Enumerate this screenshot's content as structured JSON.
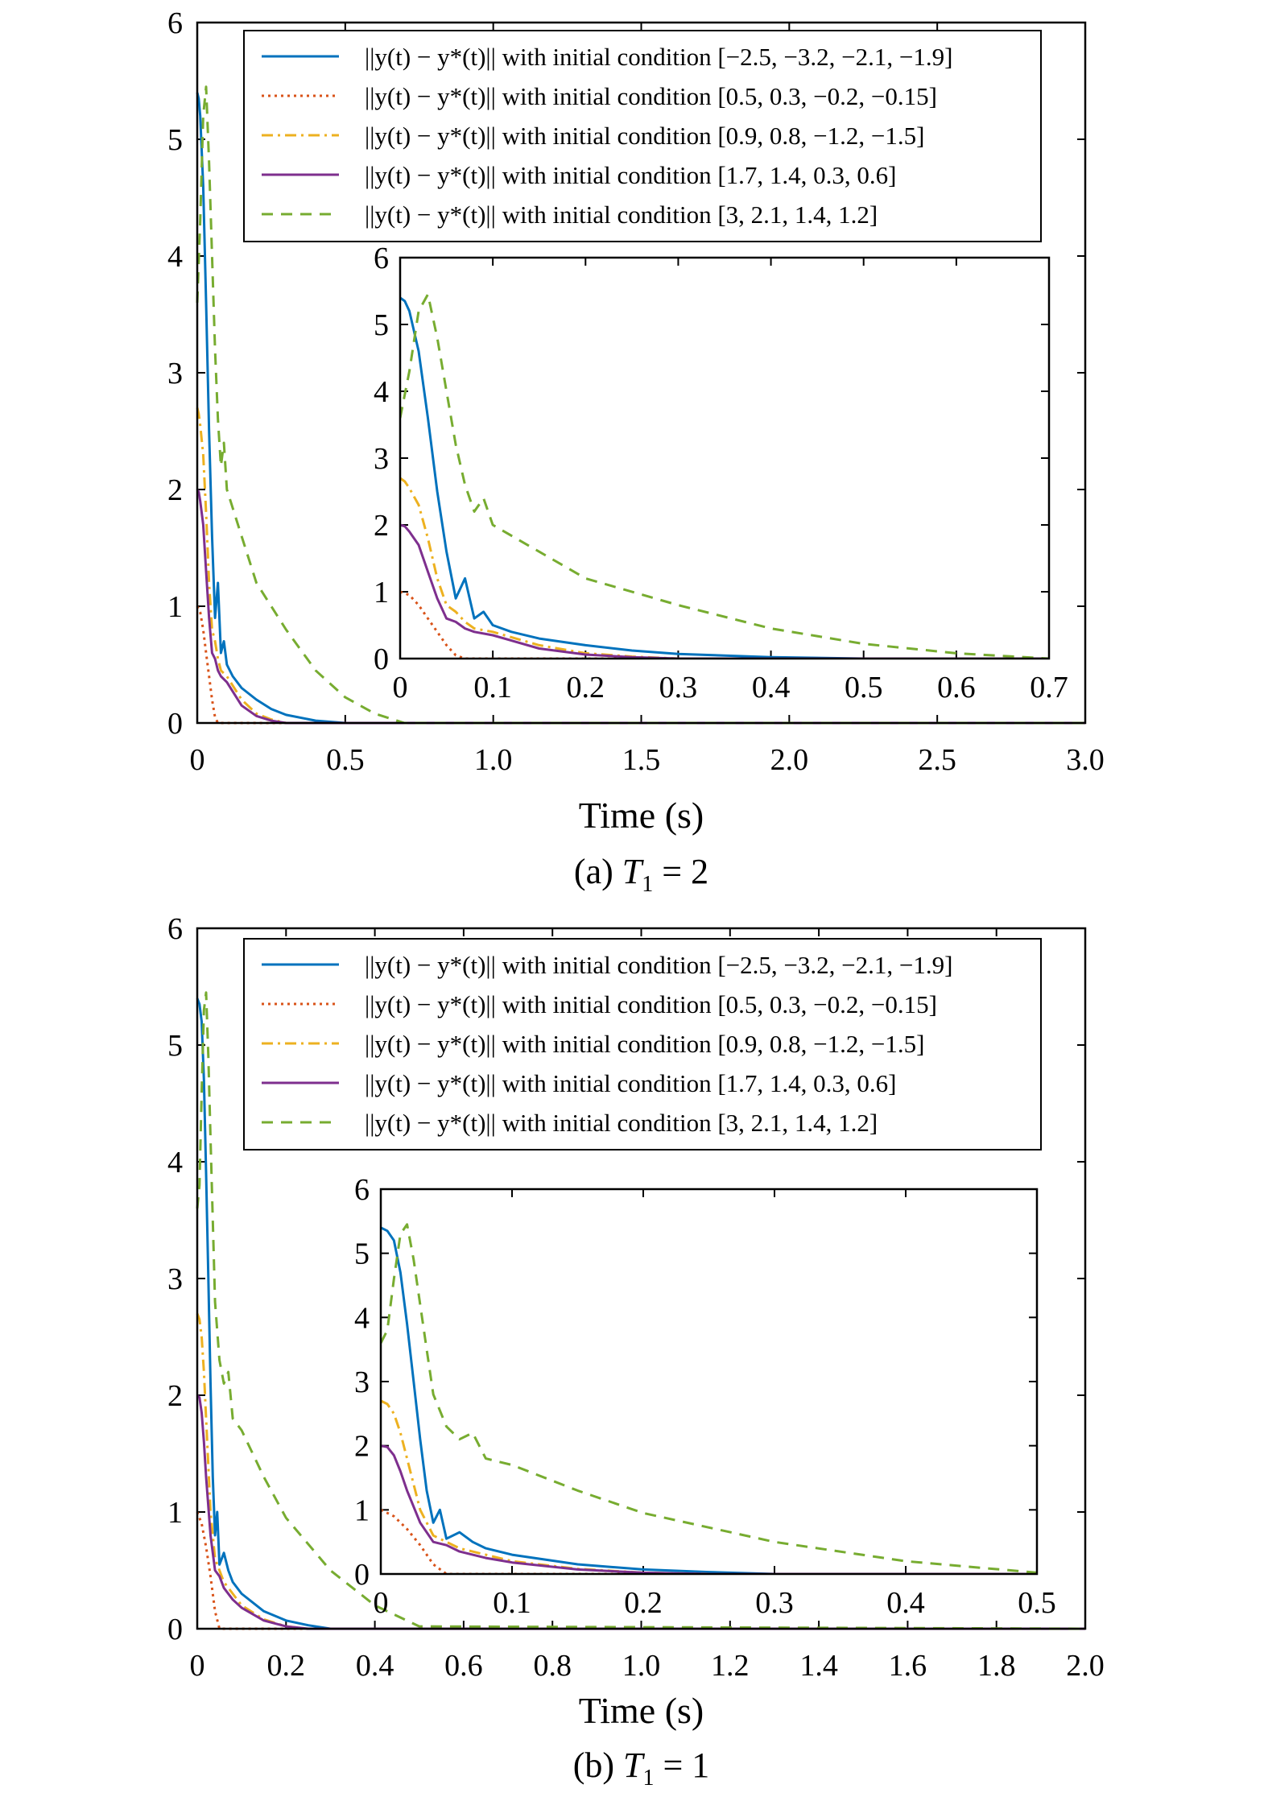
{
  "colors": {
    "s1": "#0072BD",
    "s2": "#D95319",
    "s3": "#EDB120",
    "s4": "#7E2F8E",
    "s5": "#77AC30"
  },
  "chart_data": [
    {
      "type": "line",
      "caption": "(a) T1 = 2",
      "caption_prefix": "(a) ",
      "caption_var": "T",
      "caption_sub": "1",
      "caption_rest": " = 2",
      "xlabel": "Time (s)",
      "xlim": [
        0,
        3.0
      ],
      "ylim": [
        0,
        6
      ],
      "xticks": [
        "0",
        "0.5",
        "1.0",
        "1.5",
        "2.0",
        "2.5",
        "3.0"
      ],
      "yticks": [
        "0",
        "1",
        "2",
        "3",
        "4",
        "5",
        "6"
      ],
      "legend_position": "top-right",
      "series": [
        {
          "name": "||y(t) − y*(t)|| with initial condition [−2.5, −3.2, −2.1, −1.9]",
          "style": "solid",
          "color_key": "s1",
          "x": [
            0,
            0.005,
            0.01,
            0.02,
            0.03,
            0.04,
            0.05,
            0.06,
            0.07,
            0.08,
            0.09,
            0.1,
            0.12,
            0.15,
            0.2,
            0.25,
            0.3,
            0.4,
            0.5,
            3.0
          ],
          "y": [
            5.4,
            5.35,
            5.2,
            4.6,
            3.6,
            2.5,
            1.6,
            0.9,
            1.2,
            0.6,
            0.7,
            0.5,
            0.4,
            0.3,
            0.2,
            0.12,
            0.07,
            0.02,
            0.0,
            0.0
          ]
        },
        {
          "name": "||y(t) − y*(t)|| with initial condition [0.5, 0.3, −0.2, −0.15]",
          "style": "dotted",
          "color_key": "s2",
          "x": [
            0,
            0.01,
            0.02,
            0.03,
            0.04,
            0.05,
            0.06,
            0.07,
            0.1,
            3.0
          ],
          "y": [
            1.0,
            0.95,
            0.8,
            0.6,
            0.4,
            0.2,
            0.05,
            0.0,
            0.0,
            0.0
          ]
        },
        {
          "name": "||y(t) − y*(t)|| with initial condition [0.9, 0.8, −1.2, −1.5]",
          "style": "dashdot",
          "color_key": "s3",
          "x": [
            0,
            0.005,
            0.01,
            0.02,
            0.03,
            0.04,
            0.05,
            0.06,
            0.07,
            0.08,
            0.1,
            0.15,
            0.2,
            0.25,
            0.3,
            3.0
          ],
          "y": [
            2.7,
            2.65,
            2.55,
            2.3,
            1.8,
            1.2,
            0.8,
            0.7,
            0.55,
            0.45,
            0.4,
            0.2,
            0.08,
            0.03,
            0.0,
            0.0
          ]
        },
        {
          "name": "||y(t) − y*(t)|| with initial condition [1.7, 1.4, 0.3, 0.6]",
          "style": "solid",
          "color_key": "s4",
          "x": [
            0,
            0.005,
            0.01,
            0.02,
            0.03,
            0.04,
            0.05,
            0.06,
            0.07,
            0.08,
            0.1,
            0.15,
            0.2,
            0.25,
            0.3,
            3.0
          ],
          "y": [
            2.0,
            1.98,
            1.9,
            1.7,
            1.3,
            0.9,
            0.6,
            0.55,
            0.45,
            0.4,
            0.35,
            0.15,
            0.06,
            0.02,
            0.0,
            0.0
          ]
        },
        {
          "name": "||y(t) − y*(t)|| with initial condition [3, 2.1, 1.4, 1.2]",
          "style": "dashed",
          "color_key": "s5",
          "x": [
            0,
            0.01,
            0.02,
            0.03,
            0.04,
            0.05,
            0.06,
            0.07,
            0.08,
            0.09,
            0.1,
            0.15,
            0.2,
            0.3,
            0.4,
            0.5,
            0.6,
            0.7,
            3.0
          ],
          "y": [
            3.6,
            4.3,
            5.2,
            5.45,
            4.8,
            4.0,
            3.2,
            2.6,
            2.2,
            2.4,
            2.0,
            1.6,
            1.2,
            0.8,
            0.45,
            0.22,
            0.08,
            0.0,
            0.0
          ]
        }
      ],
      "inset": {
        "xlim": [
          0,
          0.7
        ],
        "ylim": [
          0,
          6
        ],
        "xticks": [
          "0",
          "0.1",
          "0.2",
          "0.3",
          "0.4",
          "0.5",
          "0.6",
          "0.7"
        ],
        "yticks": [
          "0",
          "1",
          "2",
          "3",
          "4",
          "5",
          "6"
        ]
      }
    },
    {
      "type": "line",
      "caption": "(b) T1 = 1",
      "caption_prefix": "(b) ",
      "caption_var": "T",
      "caption_sub": "1",
      "caption_rest": " = 1",
      "xlabel": "Time (s)",
      "xlim": [
        0,
        2.0
      ],
      "ylim": [
        0,
        6
      ],
      "xticks": [
        "0",
        "0.2",
        "0.4",
        "0.6",
        "0.8",
        "1.0",
        "1.2",
        "1.4",
        "1.6",
        "1.8",
        "2.0"
      ],
      "yticks": [
        "0",
        "1",
        "2",
        "3",
        "4",
        "5",
        "6"
      ],
      "legend_position": "top-right",
      "series": [
        {
          "name": "||y(t) − y*(t)|| with initial condition [−2.5, −3.2, −2.1, −1.9]",
          "style": "solid",
          "color_key": "s1",
          "x": [
            0,
            0.005,
            0.01,
            0.015,
            0.02,
            0.025,
            0.03,
            0.035,
            0.04,
            0.045,
            0.05,
            0.06,
            0.07,
            0.08,
            0.1,
            0.15,
            0.2,
            0.25,
            0.3,
            2.0
          ],
          "y": [
            5.4,
            5.35,
            5.2,
            4.7,
            3.9,
            3.0,
            2.1,
            1.3,
            0.8,
            1.0,
            0.55,
            0.65,
            0.5,
            0.4,
            0.3,
            0.15,
            0.07,
            0.03,
            0.0,
            0.0
          ]
        },
        {
          "name": "||y(t) − y*(t)|| with initial condition [0.5, 0.3, −0.2, −0.15]",
          "style": "dotted",
          "color_key": "s2",
          "x": [
            0,
            0.01,
            0.02,
            0.03,
            0.04,
            0.05,
            0.1,
            2.0
          ],
          "y": [
            1.0,
            0.9,
            0.7,
            0.45,
            0.15,
            0.0,
            0.0,
            0.0
          ]
        },
        {
          "name": "||y(t) − y*(t)|| with initial condition [0.9, 0.8, −1.2, −1.5]",
          "style": "dashdot",
          "color_key": "s3",
          "x": [
            0,
            0.005,
            0.01,
            0.015,
            0.02,
            0.03,
            0.04,
            0.05,
            0.06,
            0.08,
            0.1,
            0.15,
            0.2,
            0.25,
            2.0
          ],
          "y": [
            2.7,
            2.65,
            2.5,
            2.2,
            1.8,
            1.0,
            0.6,
            0.5,
            0.4,
            0.3,
            0.2,
            0.08,
            0.02,
            0.0,
            0.0
          ]
        },
        {
          "name": "||y(t) − y*(t)|| with initial condition [1.7, 1.4, 0.3, 0.6]",
          "style": "solid",
          "color_key": "s4",
          "x": [
            0,
            0.005,
            0.01,
            0.015,
            0.02,
            0.03,
            0.04,
            0.05,
            0.06,
            0.08,
            0.1,
            0.15,
            0.2,
            0.25,
            2.0
          ],
          "y": [
            2.0,
            1.98,
            1.85,
            1.6,
            1.3,
            0.8,
            0.5,
            0.45,
            0.35,
            0.25,
            0.18,
            0.07,
            0.02,
            0.0,
            0.0
          ]
        },
        {
          "name": "||y(t) − y*(t)|| with initial condition [3, 2.1, 1.4, 1.2]",
          "style": "dashed",
          "color_key": "s5",
          "x": [
            0,
            0.005,
            0.01,
            0.015,
            0.02,
            0.025,
            0.03,
            0.035,
            0.04,
            0.05,
            0.06,
            0.07,
            0.08,
            0.1,
            0.15,
            0.2,
            0.3,
            0.4,
            0.5,
            2.0
          ],
          "y": [
            3.6,
            3.8,
            4.6,
            5.3,
            5.45,
            4.9,
            4.2,
            3.5,
            2.8,
            2.3,
            2.1,
            2.2,
            1.8,
            1.7,
            1.3,
            0.95,
            0.5,
            0.2,
            0.02,
            0.0
          ]
        }
      ],
      "inset": {
        "xlim": [
          0,
          0.5
        ],
        "ylim": [
          0,
          6
        ],
        "xticks": [
          "0",
          "0.1",
          "0.2",
          "0.3",
          "0.4",
          "0.5"
        ],
        "yticks": [
          "0",
          "1",
          "2",
          "3",
          "4",
          "5",
          "6"
        ]
      }
    }
  ]
}
